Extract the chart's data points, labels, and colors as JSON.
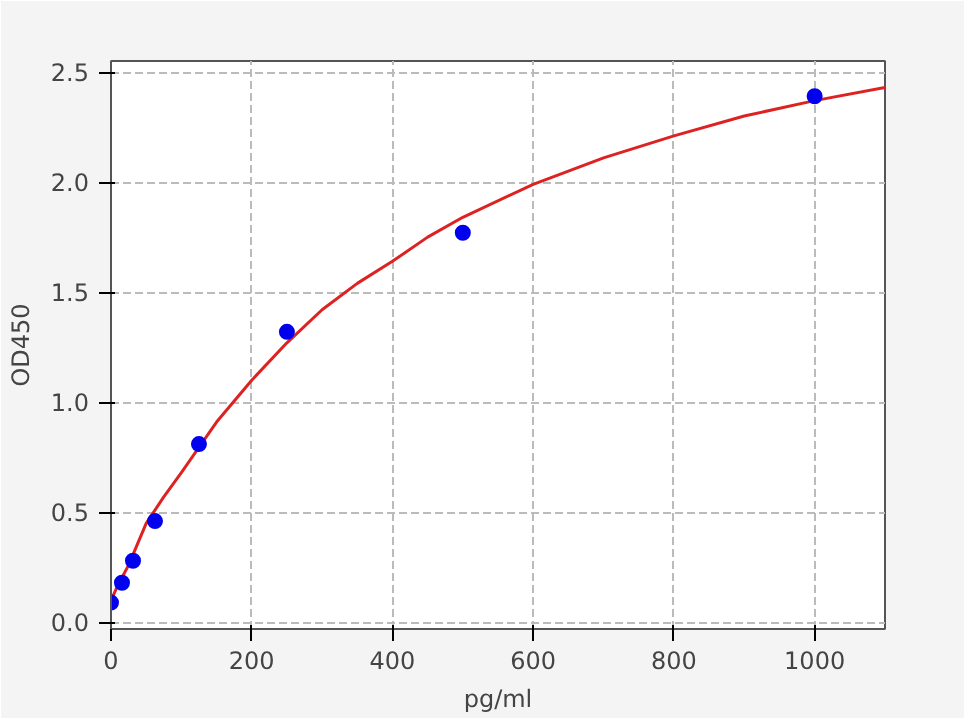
{
  "chart_data": {
    "type": "scatter",
    "xlabel": "pg/ml",
    "ylabel": "OD450",
    "xlim": [
      0,
      1100
    ],
    "ylim": [
      -0.03,
      2.55
    ],
    "xticks": [
      0,
      200,
      400,
      600,
      800,
      1000
    ],
    "yticks": [
      {
        "value": 0,
        "label": "0.0"
      },
      {
        "value": 0.5,
        "label": "0.5"
      },
      {
        "value": 1,
        "label": "1.0"
      },
      {
        "value": 1.5,
        "label": "1.5"
      },
      {
        "value": 2,
        "label": "2.0"
      },
      {
        "value": 2.5,
        "label": "2.5"
      }
    ],
    "grid": true,
    "series": [
      {
        "type": "line",
        "color": "#dd2222",
        "line_style": "solid",
        "marker": "none",
        "x": [
          0,
          10,
          25,
          50,
          75,
          100,
          150,
          200,
          250,
          300,
          350,
          400,
          450,
          500,
          600,
          700,
          800,
          900,
          1000,
          1100
        ],
        "values": [
          0.1,
          0.17,
          0.26,
          0.45,
          0.57,
          0.68,
          0.91,
          1.1,
          1.27,
          1.42,
          1.54,
          1.64,
          1.75,
          1.84,
          1.99,
          2.11,
          2.21,
          2.3,
          2.37,
          2.43
        ]
      },
      {
        "color": "#0000ee",
        "marker": "circle",
        "x": [
          0,
          15.6,
          31.25,
          62.5,
          125,
          250,
          500,
          1000
        ],
        "values": [
          0.09,
          0.18,
          0.28,
          0.46,
          0.81,
          1.32,
          1.77,
          2.39
        ]
      }
    ]
  }
}
